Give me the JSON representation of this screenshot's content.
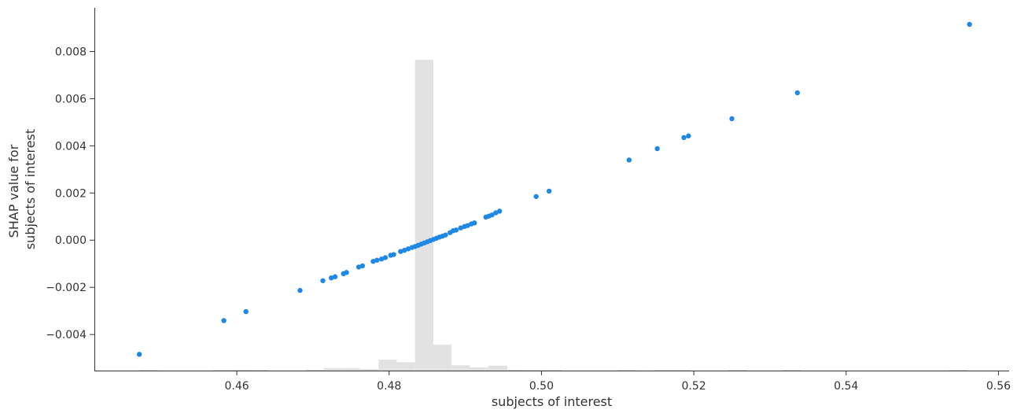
{
  "chart_data": {
    "type": "scatter",
    "title": "",
    "xlabel": "subjects of interest",
    "ylabel_lines": [
      "SHAP value for",
      "subjects of interest"
    ],
    "xlim": [
      0.4413,
      0.5614
    ],
    "ylim": [
      -0.00553,
      0.00985
    ],
    "x_ticks": [
      0.46,
      0.48,
      0.5,
      0.52,
      0.54,
      0.56
    ],
    "x_tick_labels": [
      "0.46",
      "0.48",
      "0.50",
      "0.52",
      "0.54",
      "0.56"
    ],
    "y_ticks": [
      -0.004,
      -0.002,
      0.0,
      0.002,
      0.004,
      0.006,
      0.008
    ],
    "y_tick_labels": [
      "−0.004",
      "−0.002",
      "0.000",
      "0.002",
      "0.004",
      "0.006",
      "0.008"
    ],
    "grid": false,
    "colors": {
      "points": "#1e88e5",
      "histogram": "#e2e2e2",
      "axes": "#333333"
    },
    "histogram": {
      "note_units": "bar heights are relative (fraction of tallest bin)",
      "bins": [
        {
          "x0": 0.4472,
          "x1": 0.4496,
          "h": 0.002
        },
        {
          "x0": 0.4569,
          "x1": 0.4593,
          "h": 0.002
        },
        {
          "x0": 0.4593,
          "x1": 0.4617,
          "h": 0.003
        },
        {
          "x0": 0.4617,
          "x1": 0.4641,
          "h": 0.002
        },
        {
          "x0": 0.469,
          "x1": 0.4714,
          "h": 0.003
        },
        {
          "x0": 0.4714,
          "x1": 0.4738,
          "h": 0.008
        },
        {
          "x0": 0.4738,
          "x1": 0.4762,
          "h": 0.008
        },
        {
          "x0": 0.4762,
          "x1": 0.4786,
          "h": 0.005
        },
        {
          "x0": 0.4786,
          "x1": 0.481,
          "h": 0.035
        },
        {
          "x0": 0.481,
          "x1": 0.4834,
          "h": 0.027
        },
        {
          "x0": 0.4834,
          "x1": 0.4858,
          "h": 1.0
        },
        {
          "x0": 0.4858,
          "x1": 0.4882,
          "h": 0.083
        },
        {
          "x0": 0.4882,
          "x1": 0.4906,
          "h": 0.017
        },
        {
          "x0": 0.4906,
          "x1": 0.493,
          "h": 0.01
        },
        {
          "x0": 0.493,
          "x1": 0.4955,
          "h": 0.016
        },
        {
          "x0": 0.4955,
          "x1": 0.4979,
          "h": 0.003
        },
        {
          "x0": 0.4979,
          "x1": 0.5003,
          "h": 0.002
        },
        {
          "x0": 0.5003,
          "x1": 0.5027,
          "h": 0.002
        },
        {
          "x0": 0.51,
          "x1": 0.5124,
          "h": 0.002
        },
        {
          "x0": 0.5148,
          "x1": 0.5172,
          "h": 0.002
        },
        {
          "x0": 0.5172,
          "x1": 0.5196,
          "h": 0.002
        },
        {
          "x0": 0.5245,
          "x1": 0.5269,
          "h": 0.002
        },
        {
          "x0": 0.5317,
          "x1": 0.5341,
          "h": 0.002
        },
        {
          "x0": 0.5535,
          "x1": 0.5559,
          "h": 0.002
        }
      ]
    },
    "points": [
      [
        0.4472,
        -0.00484
      ],
      [
        0.4583,
        -0.00341
      ],
      [
        0.4612,
        -0.00303
      ],
      [
        0.4683,
        -0.00213
      ],
      [
        0.4713,
        -0.00172
      ],
      [
        0.4724,
        -0.0016
      ],
      [
        0.4729,
        -0.00155
      ],
      [
        0.474,
        -0.00142
      ],
      [
        0.4744,
        -0.00137
      ],
      [
        0.476,
        -0.00114
      ],
      [
        0.4765,
        -0.00109
      ],
      [
        0.4779,
        -0.0009
      ],
      [
        0.4784,
        -0.00085
      ],
      [
        0.479,
        -0.0008
      ],
      [
        0.4795,
        -0.00074
      ],
      [
        0.4802,
        -0.00064
      ],
      [
        0.4806,
        -0.00061
      ],
      [
        0.4815,
        -0.00048
      ],
      [
        0.482,
        -0.00043
      ],
      [
        0.4825,
        -0.00037
      ],
      [
        0.483,
        -0.00031
      ],
      [
        0.4834,
        -0.00027
      ],
      [
        0.4838,
        -0.00022
      ],
      [
        0.4842,
        -0.00017
      ],
      [
        0.4846,
        -0.00012
      ],
      [
        0.485,
        -7e-05
      ],
      [
        0.4854,
        -2e-05
      ],
      [
        0.4858,
        3e-05
      ],
      [
        0.4862,
        8e-05
      ],
      [
        0.4866,
        0.00013
      ],
      [
        0.487,
        0.00017
      ],
      [
        0.4874,
        0.00022
      ],
      [
        0.488,
        0.00032
      ],
      [
        0.4884,
        0.0004
      ],
      [
        0.4888,
        0.00043
      ],
      [
        0.4894,
        0.00052
      ],
      [
        0.4899,
        0.00058
      ],
      [
        0.4903,
        0.00062
      ],
      [
        0.4908,
        0.00069
      ],
      [
        0.4912,
        0.00073
      ],
      [
        0.4927,
        0.00098
      ],
      [
        0.4931,
        0.00102
      ],
      [
        0.4935,
        0.00107
      ],
      [
        0.494,
        0.00116
      ],
      [
        0.4945,
        0.00123
      ],
      [
        0.4993,
        0.00185
      ],
      [
        0.501,
        0.00208
      ],
      [
        0.5115,
        0.0034
      ],
      [
        0.5152,
        0.00388
      ],
      [
        0.5187,
        0.00435
      ],
      [
        0.5193,
        0.00442
      ],
      [
        0.525,
        0.00515
      ],
      [
        0.5336,
        0.00625
      ],
      [
        0.5562,
        0.00915
      ]
    ]
  }
}
